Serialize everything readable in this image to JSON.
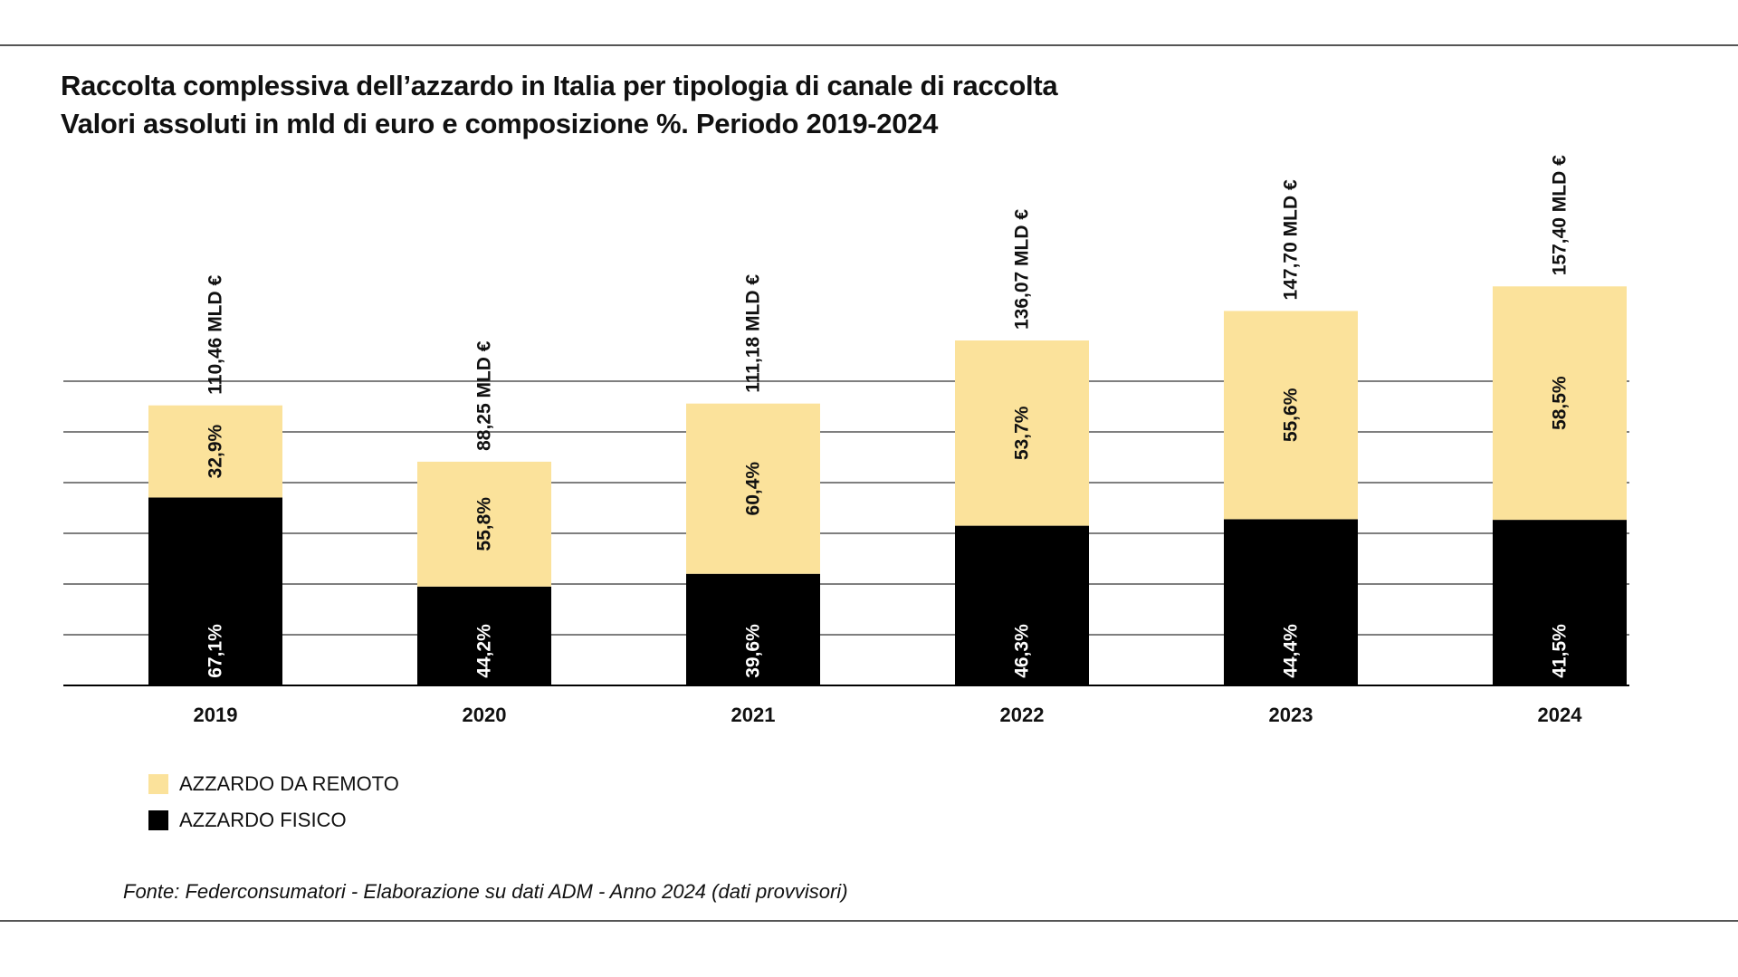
{
  "header": {
    "title": "Raccolta complessiva dell’azzardo in Italia per tipologia di canale di raccolta",
    "subtitle": "Valori assoluti in mld di euro e composizione %. Periodo 2019-2024"
  },
  "colors": {
    "remoto": "#fbe29b",
    "fisico": "#000000",
    "gridline": "#555555",
    "text": "#111111"
  },
  "chart_data": {
    "type": "bar",
    "stacked": true,
    "categories": [
      "2019",
      "2020",
      "2021",
      "2022",
      "2023",
      "2024"
    ],
    "totals": [
      110.46,
      88.25,
      111.18,
      136.07,
      147.7,
      157.4
    ],
    "total_labels": [
      "110,46 MLD €",
      "88,25 MLD €",
      "111,18 MLD €",
      "136,07 MLD €",
      "147,70 MLD €",
      "157,40 MLD €"
    ],
    "series": [
      {
        "name": "AZZARDO FISICO",
        "key": "fisico",
        "percent": [
          67.1,
          44.2,
          39.6,
          46.3,
          44.4,
          41.5
        ],
        "labels": [
          "67,1%",
          "44,2%",
          "39,6%",
          "46,3%",
          "44,4%",
          "41,5%"
        ]
      },
      {
        "name": "AZZARDO DA REMOTO",
        "key": "remoto",
        "percent": [
          32.9,
          55.8,
          60.4,
          53.7,
          55.6,
          58.5
        ],
        "labels": [
          "32,9%",
          "55,8%",
          "60,4%",
          "53,7%",
          "55,6%",
          "58,5%"
        ]
      }
    ],
    "ylim": [
      0,
      180
    ],
    "gridline_step": 20,
    "grid": true,
    "legend_position": "bottom-left"
  },
  "legend": {
    "items": [
      {
        "label": "AZZARDO DA REMOTO",
        "color": "#fbe29b"
      },
      {
        "label": "AZZARDO FISICO",
        "color": "#000000"
      }
    ]
  },
  "source": "Fonte: Federconsumatori - Elaborazione su dati ADM - Anno 2024 (dati provvisori)"
}
